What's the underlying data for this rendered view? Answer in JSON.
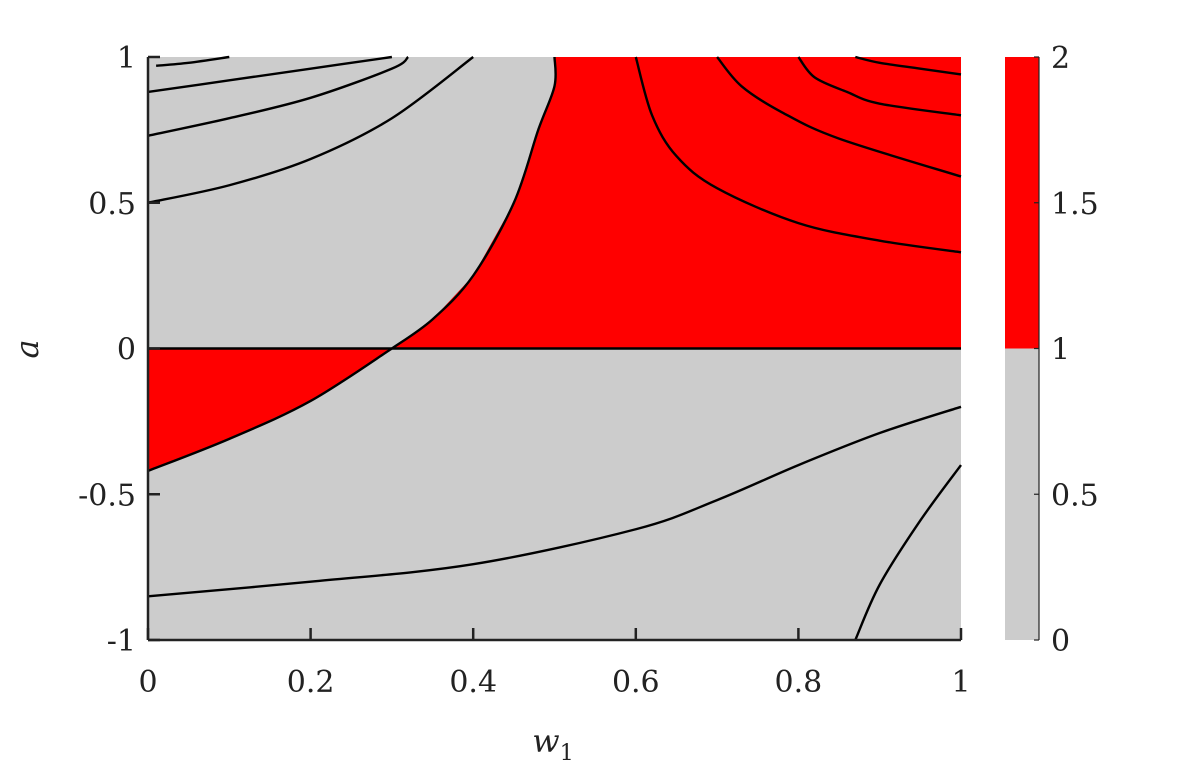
{
  "chart_data": {
    "type": "heatmap",
    "xlabel": "w",
    "xlabel_subscript": "1",
    "ylabel": "a",
    "xlim": [
      0,
      1
    ],
    "ylim": [
      -1,
      1
    ],
    "x_ticks": [
      "0",
      "0.2",
      "0.4",
      "0.6",
      "0.8",
      "1"
    ],
    "x_tick_values": [
      0,
      0.2,
      0.4,
      0.6,
      0.8,
      1
    ],
    "y_ticks": [
      "-1",
      "-0.5",
      "0",
      "0.5",
      "1"
    ],
    "y_tick_values": [
      -1,
      -0.5,
      0,
      0.5,
      1
    ],
    "colorbar": {
      "range": [
        0,
        2
      ],
      "ticks": [
        "0",
        "0.5",
        "1",
        "1.5",
        "2"
      ],
      "tick_values": [
        0,
        0.5,
        1,
        1.5,
        2
      ],
      "bands": [
        {
          "from": 0,
          "to": 1,
          "color": "#cccccc"
        },
        {
          "from": 1,
          "to": 2,
          "color": "#ff0000"
        }
      ]
    },
    "colors": {
      "low": "#cccccc",
      "high": "#ff0000",
      "contour": "#000000"
    },
    "regions": [
      {
        "color": "#ff0000",
        "points": [
          [
            0.3,
            0
          ],
          [
            0.35,
            0.1
          ],
          [
            0.4,
            0.25
          ],
          [
            0.45,
            0.5
          ],
          [
            0.48,
            0.75
          ],
          [
            0.5,
            0.9
          ],
          [
            0.5,
            1
          ],
          [
            1,
            1
          ],
          [
            1,
            0
          ]
        ]
      },
      {
        "color": "#ff0000",
        "points": [
          [
            0,
            0
          ],
          [
            0,
            -0.42
          ],
          [
            0.1,
            -0.31
          ],
          [
            0.2,
            -0.18
          ],
          [
            0.3,
            0
          ]
        ]
      }
    ],
    "contours": [
      [
        [
          0,
          0
        ],
        [
          1,
          0
        ]
      ],
      [
        [
          0.01,
          0.97
        ],
        [
          0.05,
          0.98
        ],
        [
          0.1,
          1.0
        ]
      ],
      [
        [
          0,
          0.88
        ],
        [
          0.1,
          0.92
        ],
        [
          0.2,
          0.96
        ],
        [
          0.3,
          1.0
        ]
      ],
      [
        [
          0,
          0.73
        ],
        [
          0.1,
          0.79
        ],
        [
          0.2,
          0.86
        ],
        [
          0.3,
          0.96
        ],
        [
          0.32,
          1.0
        ]
      ],
      [
        [
          0,
          0.5
        ],
        [
          0.1,
          0.56
        ],
        [
          0.2,
          0.65
        ],
        [
          0.3,
          0.79
        ],
        [
          0.4,
          1.0
        ]
      ],
      [
        [
          0.3,
          0
        ],
        [
          0.35,
          0.1
        ],
        [
          0.4,
          0.25
        ],
        [
          0.45,
          0.5
        ],
        [
          0.48,
          0.75
        ],
        [
          0.5,
          0.9
        ],
        [
          0.5,
          1
        ]
      ],
      [
        [
          0,
          -0.42
        ],
        [
          0.1,
          -0.31
        ],
        [
          0.2,
          -0.18
        ],
        [
          0.3,
          0
        ]
      ],
      [
        [
          0.6,
          1
        ],
        [
          0.62,
          0.8
        ],
        [
          0.65,
          0.66
        ],
        [
          0.7,
          0.55
        ],
        [
          0.8,
          0.43
        ],
        [
          0.9,
          0.37
        ],
        [
          1,
          0.33
        ]
      ],
      [
        [
          0.7,
          1
        ],
        [
          0.73,
          0.9
        ],
        [
          0.78,
          0.81
        ],
        [
          0.85,
          0.72
        ],
        [
          1,
          0.59
        ]
      ],
      [
        [
          0.8,
          1
        ],
        [
          0.82,
          0.93
        ],
        [
          0.86,
          0.88
        ],
        [
          0.9,
          0.84
        ],
        [
          1,
          0.8
        ]
      ],
      [
        [
          0.87,
          1
        ],
        [
          0.9,
          0.98
        ],
        [
          0.95,
          0.96
        ],
        [
          1,
          0.94
        ]
      ],
      [
        [
          0,
          -0.85
        ],
        [
          0.2,
          -0.8
        ],
        [
          0.4,
          -0.74
        ],
        [
          0.6,
          -0.62
        ],
        [
          0.7,
          -0.52
        ],
        [
          0.8,
          -0.4
        ],
        [
          0.9,
          -0.29
        ],
        [
          1,
          -0.2
        ]
      ],
      [
        [
          0.87,
          -1
        ],
        [
          0.9,
          -0.81
        ],
        [
          0.95,
          -0.59
        ],
        [
          1,
          -0.4
        ]
      ]
    ]
  }
}
